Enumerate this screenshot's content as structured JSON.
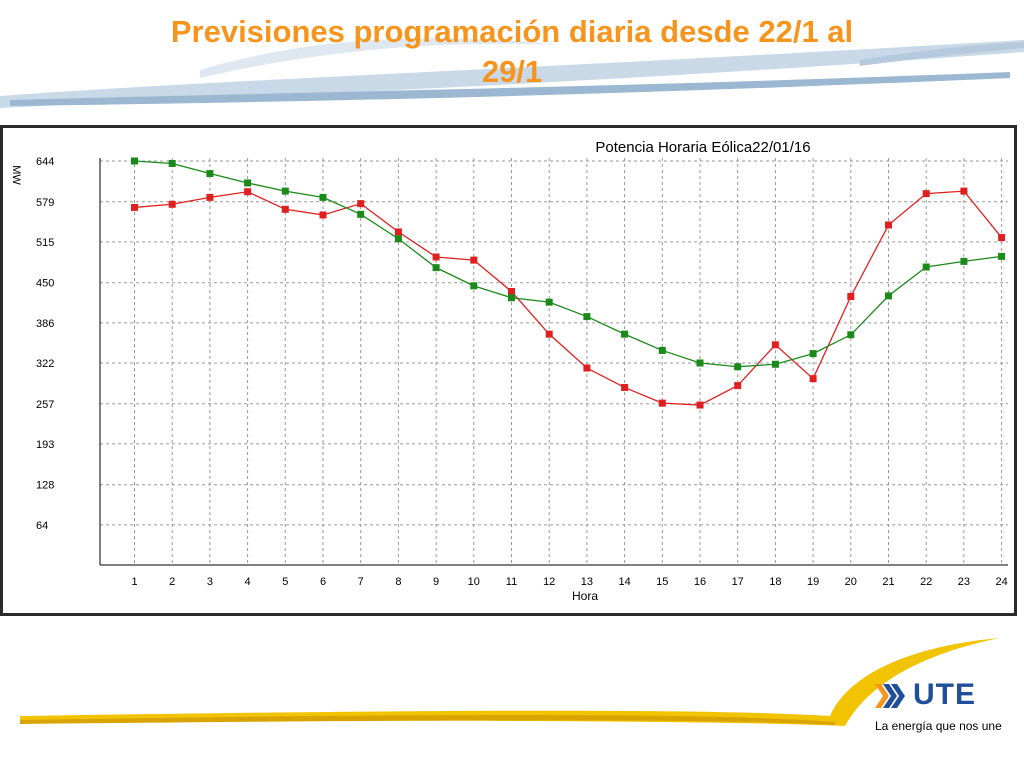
{
  "slide": {
    "title": "Previsiones programación diaria desde 22/1 al\n29/1"
  },
  "logo": {
    "wordmark": "UTE",
    "tagline": "La energía que nos une"
  },
  "colors": {
    "title": "#f7941d",
    "series_red": "#e02020",
    "series_green": "#1a8a1a",
    "grid": "#9a9a9a"
  },
  "chart_data": {
    "type": "line",
    "title": "Potencia Horaria Eólica22/01/16",
    "xlabel": "Hora",
    "ylabel": "MW",
    "x": [
      1,
      2,
      3,
      4,
      5,
      6,
      7,
      8,
      9,
      10,
      11,
      12,
      13,
      14,
      15,
      16,
      17,
      18,
      19,
      20,
      21,
      22,
      23,
      24
    ],
    "x_ticks": [
      "1",
      "2",
      "3",
      "4",
      "5",
      "6",
      "7",
      "8",
      "9",
      "10",
      "11",
      "12",
      "13",
      "14",
      "15",
      "16",
      "17",
      "18",
      "19",
      "20",
      "21",
      "22",
      "23",
      "24"
    ],
    "y_ticks": [
      "644",
      "579",
      "515",
      "450",
      "386",
      "322",
      "257",
      "193",
      "128",
      "64"
    ],
    "ylim": [
      0,
      644
    ],
    "grid": true,
    "series": [
      {
        "color": "#e02020",
        "values": [
          570,
          575,
          586,
          595,
          567,
          558,
          576,
          531,
          491,
          486,
          436,
          368,
          314,
          283,
          258,
          255,
          286,
          351,
          297,
          428,
          542,
          592,
          596,
          522
        ]
      },
      {
        "color": "#1a8a1a",
        "values": [
          644,
          640,
          624,
          609,
          596,
          586,
          559,
          520,
          474,
          445,
          426,
          419,
          396,
          368,
          342,
          322,
          316,
          320,
          337,
          367,
          429,
          475,
          484,
          492
        ]
      }
    ]
  }
}
